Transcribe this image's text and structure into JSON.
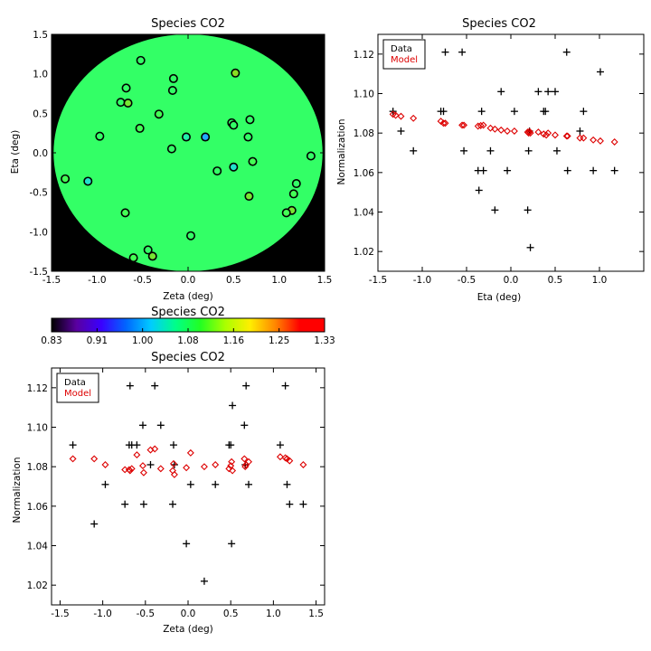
{
  "chart_data": [
    {
      "id": "map",
      "type": "scatter",
      "title": "Species CO2",
      "xlabel": "Zeta (deg)",
      "ylabel": "Eta (deg)",
      "xlim": [
        -1.5,
        1.5
      ],
      "ylim": [
        -1.5,
        1.5
      ],
      "xticks": [
        "-1.5",
        "-1.0",
        "-0.5",
        "0.0",
        "0.5",
        "1.0",
        "1.5"
      ],
      "yticks": [
        "-1.5",
        "-1.0",
        "-0.5",
        "0.0",
        "0.5",
        "1.0",
        "1.5"
      ],
      "background_color": "#000000",
      "disk_color": "#33ff66",
      "points": [
        {
          "x": -0.52,
          "y": 1.17,
          "c": "#33ff66"
        },
        {
          "x": -0.16,
          "y": 0.94,
          "c": "#33ff66"
        },
        {
          "x": 0.52,
          "y": 1.01,
          "c": "#88dd22"
        },
        {
          "x": -0.68,
          "y": 0.82,
          "c": "#33ff66"
        },
        {
          "x": -0.17,
          "y": 0.79,
          "c": "#33ff66"
        },
        {
          "x": -0.74,
          "y": 0.64,
          "c": "#33ff66"
        },
        {
          "x": -0.66,
          "y": 0.63,
          "c": "#77e633"
        },
        {
          "x": -0.32,
          "y": 0.49,
          "c": "#44ff55"
        },
        {
          "x": 0.68,
          "y": 0.42,
          "c": "#33ff66"
        },
        {
          "x": 0.48,
          "y": 0.38,
          "c": "#33ff66"
        },
        {
          "x": 0.5,
          "y": 0.35,
          "c": "#33ff66"
        },
        {
          "x": -0.53,
          "y": 0.31,
          "c": "#44ff55"
        },
        {
          "x": -0.97,
          "y": 0.21,
          "c": "#33ff66"
        },
        {
          "x": 0.66,
          "y": 0.2,
          "c": "#33ff66"
        },
        {
          "x": -0.02,
          "y": 0.2,
          "c": "#22f0aa"
        },
        {
          "x": 0.19,
          "y": 0.2,
          "c": "#22aaff"
        },
        {
          "x": -0.18,
          "y": 0.05,
          "c": "#33ff66"
        },
        {
          "x": 1.35,
          "y": -0.04,
          "c": "#33ff66"
        },
        {
          "x": 0.71,
          "y": -0.11,
          "c": "#44ff55"
        },
        {
          "x": 0.5,
          "y": -0.18,
          "c": "#22e0cc"
        },
        {
          "x": 0.32,
          "y": -0.23,
          "c": "#33ff66"
        },
        {
          "x": -1.35,
          "y": -0.33,
          "c": "#44ff55"
        },
        {
          "x": -1.1,
          "y": -0.36,
          "c": "#22e0cc"
        },
        {
          "x": 1.19,
          "y": -0.39,
          "c": "#33ff66"
        },
        {
          "x": 1.16,
          "y": -0.52,
          "c": "#44ff55"
        },
        {
          "x": 0.67,
          "y": -0.55,
          "c": "#77e633"
        },
        {
          "x": 1.14,
          "y": -0.73,
          "c": "#77e633"
        },
        {
          "x": 1.08,
          "y": -0.76,
          "c": "#44ff55"
        },
        {
          "x": -0.69,
          "y": -0.76,
          "c": "#44ff55"
        },
        {
          "x": 0.03,
          "y": -1.05,
          "c": "#33ff66"
        },
        {
          "x": -0.44,
          "y": -1.23,
          "c": "#33ff66"
        },
        {
          "x": -0.39,
          "y": -1.31,
          "c": "#77e633"
        },
        {
          "x": -0.6,
          "y": -1.33,
          "c": "#44ff55"
        }
      ]
    },
    {
      "id": "eta",
      "type": "scatter",
      "title": "Species CO2",
      "xlabel": "Eta (deg)",
      "ylabel": "Normalization",
      "xlim": [
        -1.5,
        1.5
      ],
      "ylim": [
        1.01,
        1.13
      ],
      "xticks": [
        "-1.5",
        "-1.0",
        "-0.5",
        "0.0",
        "0.5",
        "1.0"
      ],
      "yticks": [
        "1.02",
        "1.04",
        "1.06",
        "1.08",
        "1.10",
        "1.12"
      ],
      "legend_position": "top-left",
      "series": [
        {
          "name": "Data",
          "marker": "plus",
          "color": "#000000",
          "points": [
            {
              "x": -1.33,
              "y": 1.091
            },
            {
              "x": -1.24,
              "y": 1.081
            },
            {
              "x": -1.1,
              "y": 1.071
            },
            {
              "x": -0.79,
              "y": 1.091
            },
            {
              "x": -0.76,
              "y": 1.091
            },
            {
              "x": -0.74,
              "y": 1.121
            },
            {
              "x": -0.55,
              "y": 1.121
            },
            {
              "x": -0.53,
              "y": 1.071
            },
            {
              "x": -0.37,
              "y": 1.061
            },
            {
              "x": -0.36,
              "y": 1.051
            },
            {
              "x": -0.33,
              "y": 1.091
            },
            {
              "x": -0.31,
              "y": 1.061
            },
            {
              "x": -0.23,
              "y": 1.071
            },
            {
              "x": -0.18,
              "y": 1.041
            },
            {
              "x": -0.11,
              "y": 1.101
            },
            {
              "x": -0.04,
              "y": 1.061
            },
            {
              "x": 0.04,
              "y": 1.091
            },
            {
              "x": 0.19,
              "y": 1.041
            },
            {
              "x": 0.2,
              "y": 1.071
            },
            {
              "x": 0.21,
              "y": 1.081
            },
            {
              "x": 0.22,
              "y": 1.022
            },
            {
              "x": 0.31,
              "y": 1.101
            },
            {
              "x": 0.37,
              "y": 1.091
            },
            {
              "x": 0.39,
              "y": 1.091
            },
            {
              "x": 0.42,
              "y": 1.101
            },
            {
              "x": 0.5,
              "y": 1.101
            },
            {
              "x": 0.52,
              "y": 1.071
            },
            {
              "x": 0.63,
              "y": 1.121
            },
            {
              "x": 0.64,
              "y": 1.061
            },
            {
              "x": 0.78,
              "y": 1.081
            },
            {
              "x": 0.82,
              "y": 1.091
            },
            {
              "x": 0.93,
              "y": 1.061
            },
            {
              "x": 1.01,
              "y": 1.111
            },
            {
              "x": 1.17,
              "y": 1.061
            }
          ]
        },
        {
          "name": "Model",
          "marker": "diamond",
          "color": "#dd0000",
          "points": [
            {
              "x": -1.33,
              "y": 1.0895
            },
            {
              "x": -1.3,
              "y": 1.089
            },
            {
              "x": -1.24,
              "y": 1.0885
            },
            {
              "x": -1.1,
              "y": 1.0875
            },
            {
              "x": -0.79,
              "y": 1.086
            },
            {
              "x": -0.76,
              "y": 1.085
            },
            {
              "x": -0.74,
              "y": 1.085
            },
            {
              "x": -0.55,
              "y": 1.084
            },
            {
              "x": -0.53,
              "y": 1.084
            },
            {
              "x": -0.37,
              "y": 1.0835
            },
            {
              "x": -0.34,
              "y": 1.0838
            },
            {
              "x": -0.31,
              "y": 1.084
            },
            {
              "x": -0.23,
              "y": 1.0825
            },
            {
              "x": -0.18,
              "y": 1.082
            },
            {
              "x": -0.11,
              "y": 1.0815
            },
            {
              "x": -0.04,
              "y": 1.081
            },
            {
              "x": 0.04,
              "y": 1.081
            },
            {
              "x": 0.19,
              "y": 1.0805
            },
            {
              "x": 0.2,
              "y": 1.08
            },
            {
              "x": 0.21,
              "y": 1.0808
            },
            {
              "x": 0.22,
              "y": 1.08
            },
            {
              "x": 0.31,
              "y": 1.0805
            },
            {
              "x": 0.37,
              "y": 1.0795
            },
            {
              "x": 0.4,
              "y": 1.079
            },
            {
              "x": 0.42,
              "y": 1.08
            },
            {
              "x": 0.5,
              "y": 1.079
            },
            {
              "x": 0.63,
              "y": 1.0785
            },
            {
              "x": 0.64,
              "y": 1.0785
            },
            {
              "x": 0.78,
              "y": 1.0775
            },
            {
              "x": 0.82,
              "y": 1.0775
            },
            {
              "x": 0.93,
              "y": 1.0765
            },
            {
              "x": 1.01,
              "y": 1.076
            },
            {
              "x": 1.17,
              "y": 1.0755
            }
          ]
        }
      ]
    },
    {
      "id": "colorbar",
      "type": "heatmap",
      "title": "Species CO2",
      "tick_labels": [
        "0.83",
        "0.91",
        "1.00",
        "1.08",
        "1.16",
        "1.25",
        "1.33"
      ],
      "range": [
        0.83,
        1.33
      ],
      "colormap": [
        "#000000",
        "#5a00a0",
        "#3a00ff",
        "#0066ff",
        "#00ccff",
        "#00ff88",
        "#22ff22",
        "#aaff00",
        "#ffee00",
        "#ff8800",
        "#ff0000",
        "#ff0000"
      ]
    },
    {
      "id": "zeta",
      "type": "scatter",
      "title": "Species CO2",
      "xlabel": "Zeta (deg)",
      "ylabel": "Normalization",
      "xlim": [
        -1.6,
        1.6
      ],
      "ylim": [
        1.01,
        1.13
      ],
      "xticks": [
        "-1.5",
        "-1.0",
        "-0.5",
        "0.0",
        "0.5",
        "1.0",
        "1.5"
      ],
      "yticks": [
        "1.02",
        "1.04",
        "1.06",
        "1.08",
        "1.10",
        "1.12"
      ],
      "legend_position": "top-left",
      "series": [
        {
          "name": "Data",
          "marker": "plus",
          "color": "#000000",
          "points": [
            {
              "x": -1.35,
              "y": 1.091
            },
            {
              "x": -1.1,
              "y": 1.051
            },
            {
              "x": -0.97,
              "y": 1.071
            },
            {
              "x": -0.74,
              "y": 1.061
            },
            {
              "x": -0.69,
              "y": 1.091
            },
            {
              "x": -0.68,
              "y": 1.121
            },
            {
              "x": -0.66,
              "y": 1.091
            },
            {
              "x": -0.6,
              "y": 1.091
            },
            {
              "x": -0.53,
              "y": 1.101
            },
            {
              "x": -0.52,
              "y": 1.061
            },
            {
              "x": -0.44,
              "y": 1.081
            },
            {
              "x": -0.39,
              "y": 1.121
            },
            {
              "x": -0.32,
              "y": 1.101
            },
            {
              "x": -0.18,
              "y": 1.061
            },
            {
              "x": -0.17,
              "y": 1.091
            },
            {
              "x": -0.16,
              "y": 1.081
            },
            {
              "x": -0.02,
              "y": 1.041
            },
            {
              "x": 0.03,
              "y": 1.071
            },
            {
              "x": 0.19,
              "y": 1.022
            },
            {
              "x": 0.32,
              "y": 1.071
            },
            {
              "x": 0.48,
              "y": 1.091
            },
            {
              "x": 0.5,
              "y": 1.091
            },
            {
              "x": 0.51,
              "y": 1.041
            },
            {
              "x": 0.52,
              "y": 1.111
            },
            {
              "x": 0.66,
              "y": 1.101
            },
            {
              "x": 0.67,
              "y": 1.081
            },
            {
              "x": 0.68,
              "y": 1.121
            },
            {
              "x": 0.71,
              "y": 1.071
            },
            {
              "x": 1.08,
              "y": 1.091
            },
            {
              "x": 1.14,
              "y": 1.121
            },
            {
              "x": 1.16,
              "y": 1.071
            },
            {
              "x": 1.19,
              "y": 1.061
            },
            {
              "x": 1.35,
              "y": 1.061
            }
          ]
        },
        {
          "name": "Model",
          "marker": "diamond",
          "color": "#dd0000",
          "points": [
            {
              "x": -1.35,
              "y": 1.084
            },
            {
              "x": -1.1,
              "y": 1.084
            },
            {
              "x": -0.97,
              "y": 1.081
            },
            {
              "x": -0.74,
              "y": 1.0785
            },
            {
              "x": -0.69,
              "y": 1.0785
            },
            {
              "x": -0.68,
              "y": 1.078
            },
            {
              "x": -0.66,
              "y": 1.079
            },
            {
              "x": -0.6,
              "y": 1.086
            },
            {
              "x": -0.53,
              "y": 1.0805
            },
            {
              "x": -0.52,
              "y": 1.077
            },
            {
              "x": -0.44,
              "y": 1.0885
            },
            {
              "x": -0.39,
              "y": 1.089
            },
            {
              "x": -0.32,
              "y": 1.079
            },
            {
              "x": -0.18,
              "y": 1.078
            },
            {
              "x": -0.17,
              "y": 1.0815
            },
            {
              "x": -0.16,
              "y": 1.076
            },
            {
              "x": -0.02,
              "y": 1.0795
            },
            {
              "x": 0.03,
              "y": 1.087
            },
            {
              "x": 0.19,
              "y": 1.08
            },
            {
              "x": 0.32,
              "y": 1.081
            },
            {
              "x": 0.48,
              "y": 1.079
            },
            {
              "x": 0.5,
              "y": 1.0805
            },
            {
              "x": 0.51,
              "y": 1.0825
            },
            {
              "x": 0.52,
              "y": 1.078
            },
            {
              "x": 0.66,
              "y": 1.084
            },
            {
              "x": 0.67,
              "y": 1.08
            },
            {
              "x": 0.68,
              "y": 1.081
            },
            {
              "x": 0.71,
              "y": 1.0825
            },
            {
              "x": 1.08,
              "y": 1.085
            },
            {
              "x": 1.14,
              "y": 1.0845
            },
            {
              "x": 1.16,
              "y": 1.084
            },
            {
              "x": 1.19,
              "y": 1.083
            },
            {
              "x": 1.35,
              "y": 1.081
            }
          ]
        }
      ]
    }
  ]
}
